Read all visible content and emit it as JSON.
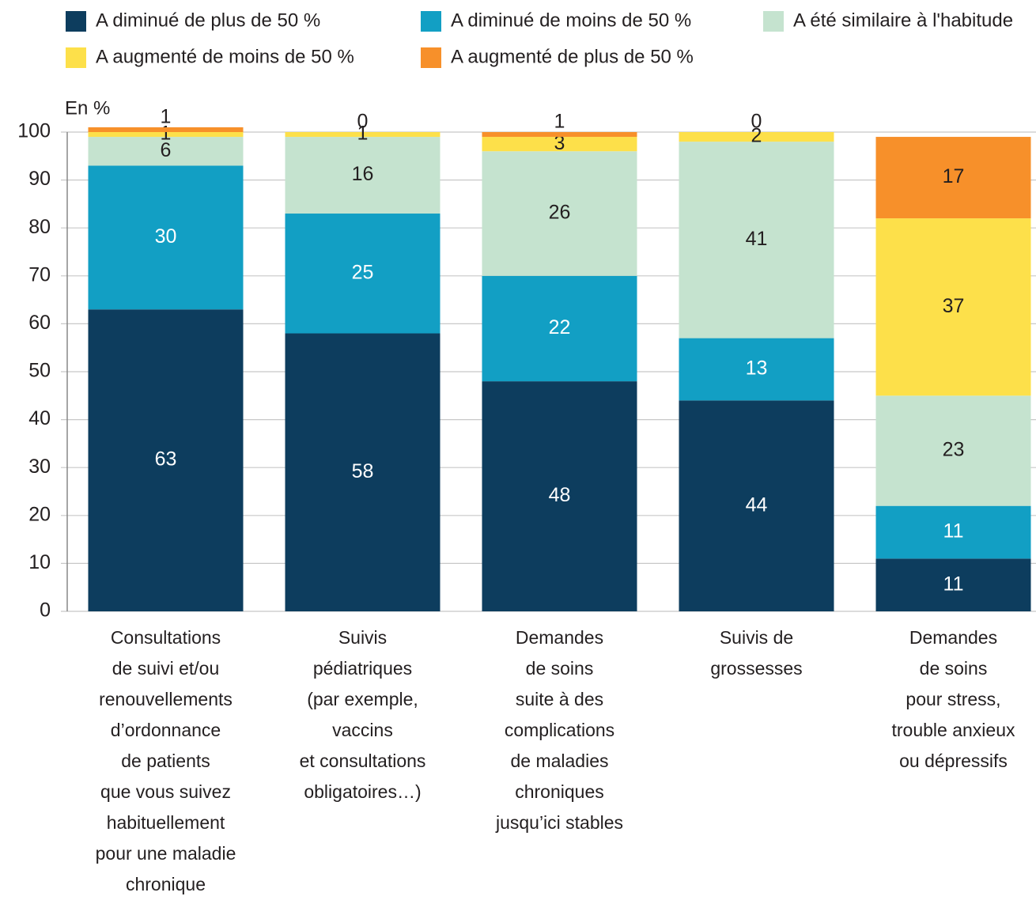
{
  "chart_data": {
    "type": "stacked_bar",
    "y_label": "En %",
    "categories": [
      "Consultations\nde suivi et/ou\nrenouvellements\nd’ordonnance\nde patients\nque vous suivez\nhabituellement\npour une maladie\nchronique",
      "Suivis\npédiatriques\n(par exemple,\nvaccins\net consultations\nobligatoires…)",
      "Demandes\nde soins\nsuite à des\ncomplications\nde maladies\nchroniques\njusqu’ici stables",
      "Suivis de\ngrossesses",
      "Demandes\nde soins\npour stress,\ntrouble anxieux\nou dépressifs"
    ],
    "series": [
      {
        "name": "A diminué de plus de 50 %",
        "color": "#0d3d5e",
        "values": [
          63,
          58,
          48,
          44,
          11
        ]
      },
      {
        "name": "A diminué de moins de 50 %",
        "color": "#129fc4",
        "values": [
          30,
          25,
          22,
          13,
          11
        ]
      },
      {
        "name": "A été similaire à l'habitude",
        "color": "#c5e3cf",
        "values": [
          6,
          16,
          26,
          41,
          23
        ]
      },
      {
        "name": "A augmenté de moins de 50 %",
        "color": "#fde04a",
        "values": [
          1,
          1,
          3,
          2,
          37
        ]
      },
      {
        "name": "A augmenté de plus de 50 %",
        "color": "#f7902a",
        "values": [
          1,
          0,
          1,
          0,
          17
        ]
      }
    ],
    "ylim": [
      0,
      100
    ],
    "yticks": [
      0,
      10,
      20,
      30,
      40,
      50,
      60,
      70,
      80,
      90,
      100
    ],
    "grid": true,
    "legend": "top"
  }
}
